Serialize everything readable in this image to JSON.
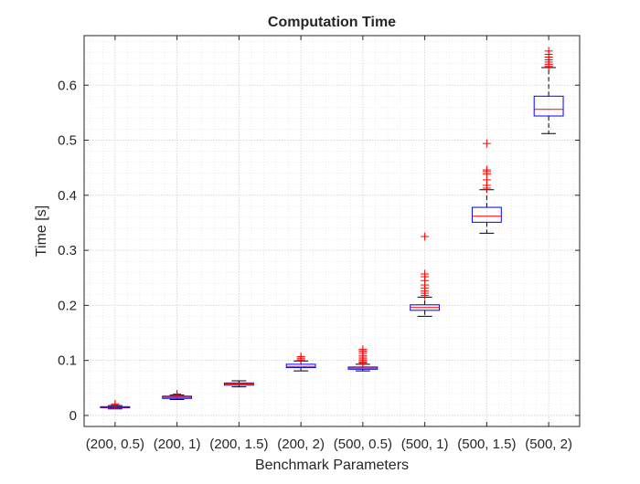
{
  "chart_data": {
    "type": "boxplot",
    "title": "Computation Time",
    "xlabel": "Benchmark Parameters",
    "ylabel": "Time [s]",
    "ylim": [
      -0.02,
      0.69
    ],
    "yticks": [
      0,
      0.1,
      0.2,
      0.3,
      0.4,
      0.5,
      0.6
    ],
    "ytick_labels": [
      "0",
      "0.1",
      "0.2",
      "0.3",
      "0.4",
      "0.5",
      "0.6"
    ],
    "grid": true,
    "minor_grid": true,
    "categories": [
      "(200, 0.5)",
      "(200, 1)",
      "(200, 1.5)",
      "(200, 2)",
      "(500, 0.5)",
      "(500, 1)",
      "(500, 1.5)",
      "(500, 2)"
    ],
    "boxes": [
      {
        "label": "(200, 0.5)",
        "whisker_low": 0.012,
        "q1": 0.014,
        "median": 0.015,
        "q3": 0.016,
        "whisker_high": 0.018,
        "outliers": [
          0.019,
          0.021
        ]
      },
      {
        "label": "(200, 1)",
        "whisker_low": 0.029,
        "q1": 0.031,
        "median": 0.033,
        "q3": 0.035,
        "whisker_high": 0.037,
        "outliers": [
          0.038,
          0.039
        ]
      },
      {
        "label": "(200, 1.5)",
        "whisker_low": 0.052,
        "q1": 0.055,
        "median": 0.057,
        "q3": 0.059,
        "whisker_high": 0.063,
        "outliers": []
      },
      {
        "label": "(200, 2)",
        "whisker_low": 0.081,
        "q1": 0.087,
        "median": 0.089,
        "q3": 0.093,
        "whisker_high": 0.099,
        "outliers": [
          0.101,
          0.104,
          0.107
        ]
      },
      {
        "label": "(500, 0.5)",
        "whisker_low": 0.081,
        "q1": 0.084,
        "median": 0.086,
        "q3": 0.088,
        "whisker_high": 0.093,
        "outliers": [
          0.095,
          0.097,
          0.1,
          0.103,
          0.106,
          0.109,
          0.113,
          0.117,
          0.12
        ]
      },
      {
        "label": "(500, 1)",
        "whisker_low": 0.18,
        "q1": 0.191,
        "median": 0.196,
        "q3": 0.201,
        "whisker_high": 0.215,
        "outliers": [
          0.218,
          0.222,
          0.226,
          0.231,
          0.237,
          0.245,
          0.252,
          0.257,
          0.325
        ]
      },
      {
        "label": "(500, 1.5)",
        "whisker_low": 0.331,
        "q1": 0.351,
        "median": 0.362,
        "q3": 0.378,
        "whisker_high": 0.41,
        "outliers": [
          0.413,
          0.418,
          0.428,
          0.439,
          0.443,
          0.446,
          0.494
        ]
      },
      {
        "label": "(500, 2)",
        "whisker_low": 0.512,
        "q1": 0.544,
        "median": 0.556,
        "q3": 0.58,
        "whisker_high": 0.632,
        "outliers": [
          0.634,
          0.638,
          0.642,
          0.646,
          0.651,
          0.656,
          0.662
        ]
      }
    ],
    "colors": {
      "box": "#0000ff",
      "median": "#ff0000",
      "whisker": "#000000",
      "outlier": "#ff0000",
      "axis": "#262626",
      "grid": "#dedede"
    }
  }
}
